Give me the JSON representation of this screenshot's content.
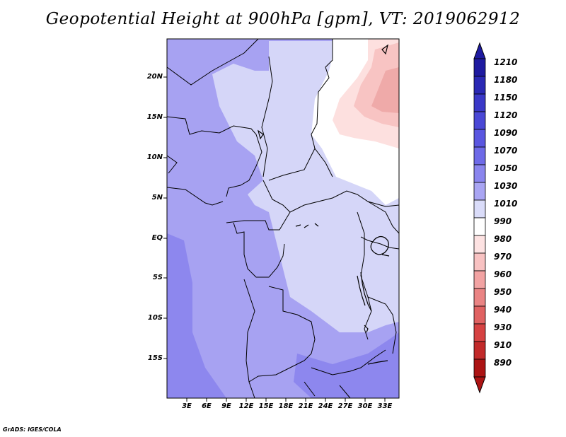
{
  "title": "Geopotential Height at 900hPa [gpm], VT: 2019062912",
  "credit": "GrADS: IGES/COLA",
  "map": {
    "lat_labels": [
      "20N",
      "15N",
      "10N",
      "5N",
      "EQ",
      "5S",
      "10S",
      "15S"
    ],
    "lon_labels": [
      "3E",
      "6E",
      "9E",
      "12E",
      "15E",
      "18E",
      "21E",
      "24E",
      "27E",
      "30E",
      "33E"
    ]
  },
  "colorbar": {
    "labels": [
      "1210",
      "1180",
      "1150",
      "1120",
      "1090",
      "1070",
      "1050",
      "1030",
      "1010",
      "990",
      "980",
      "970",
      "960",
      "950",
      "940",
      "930",
      "910",
      "890"
    ],
    "colors": [
      "#1e1aa0",
      "#2a28b4",
      "#3a38c8",
      "#4a48d6",
      "#5a56e0",
      "#6e6ae8",
      "#8a85ee",
      "#a9a5f3",
      "#dadcf9",
      "#ffffff",
      "#fde2e2",
      "#f8c2c2",
      "#f2a3a3",
      "#ea8484",
      "#e06262",
      "#d64242",
      "#c22a2a",
      "#ac1414"
    ]
  },
  "field_colors": {
    "deep_blue": "#8d87ee",
    "mid_blue": "#a7a2f2",
    "light_blue": "#d5d6f8",
    "white": "#ffffff",
    "light_pink": "#fde0df",
    "pink": "#f8c4c3"
  }
}
